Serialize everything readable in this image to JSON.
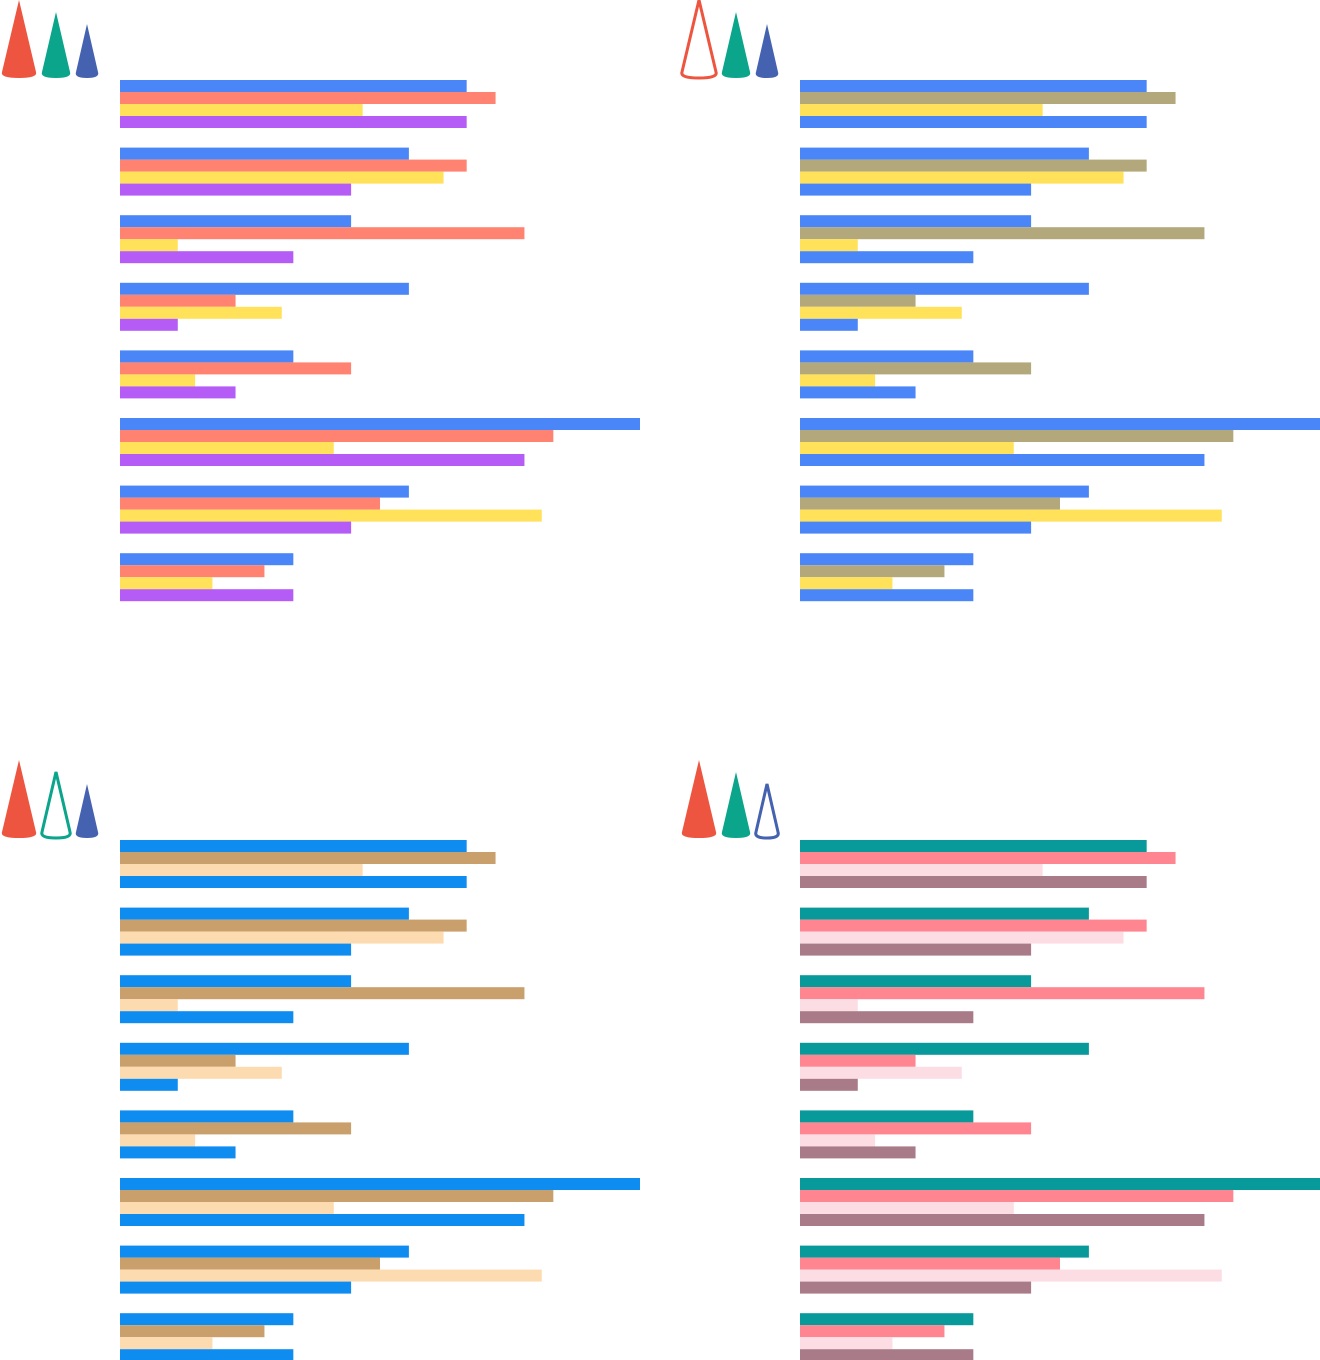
{
  "chart_data": [
    {
      "type": "bar",
      "horizontal": true,
      "xlim": [
        0,
        9
      ],
      "series": [
        {
          "color": "#4a86f7",
          "values": [
            6,
            5,
            4,
            5,
            3,
            9,
            5,
            3
          ]
        },
        {
          "color": "#ff8370",
          "values": [
            6.5,
            6,
            7,
            2,
            4,
            7.5,
            4.5,
            2.5
          ]
        },
        {
          "color": "#ffe15a",
          "values": [
            4.2,
            5.6,
            1,
            2.8,
            1.3,
            3.7,
            7.3,
            1.6
          ]
        },
        {
          "color": "#b45cf5",
          "values": [
            6,
            4,
            3,
            1,
            2,
            7,
            4,
            3
          ]
        }
      ]
    },
    {
      "type": "bar",
      "horizontal": true,
      "xlim": [
        0,
        9
      ],
      "series": [
        {
          "color": "#4a86f7",
          "values": [
            6,
            5,
            4,
            5,
            3,
            9,
            5,
            3
          ]
        },
        {
          "color": "#b3a87b",
          "values": [
            6.5,
            6,
            7,
            2,
            4,
            7.5,
            4.5,
            2.5
          ]
        },
        {
          "color": "#ffe15a",
          "values": [
            4.2,
            5.6,
            1,
            2.8,
            1.3,
            3.7,
            7.3,
            1.6
          ]
        },
        {
          "color": "#4a86f7",
          "values": [
            6,
            4,
            3,
            1,
            2,
            7,
            4,
            3
          ]
        }
      ]
    },
    {
      "type": "bar",
      "horizontal": true,
      "xlim": [
        0,
        9
      ],
      "series": [
        {
          "color": "#0f8cf0",
          "values": [
            6,
            5,
            4,
            5,
            3,
            9,
            5,
            3
          ]
        },
        {
          "color": "#c9a06c",
          "values": [
            6.5,
            6,
            7,
            2,
            4,
            7.5,
            4.5,
            2.5
          ]
        },
        {
          "color": "#fddbb0",
          "values": [
            4.2,
            5.6,
            1,
            2.8,
            1.3,
            3.7,
            7.3,
            1.6
          ]
        },
        {
          "color": "#0f8cf0",
          "values": [
            6,
            4,
            3,
            1,
            2,
            7,
            4,
            3
          ]
        }
      ]
    },
    {
      "type": "bar",
      "horizontal": true,
      "xlim": [
        0,
        9
      ],
      "series": [
        {
          "color": "#08999a",
          "values": [
            6,
            5,
            4,
            5,
            3,
            9,
            5,
            3
          ]
        },
        {
          "color": "#ff8591",
          "values": [
            6.5,
            6,
            7,
            2,
            4,
            7.5,
            4.5,
            2.5
          ]
        },
        {
          "color": "#fcdde4",
          "values": [
            4.2,
            5.6,
            1,
            2.8,
            1.3,
            3.7,
            7.3,
            1.6
          ]
        },
        {
          "color": "#a97b88",
          "values": [
            6,
            4,
            3,
            1,
            2,
            7,
            4,
            3
          ]
        }
      ]
    }
  ]
}
